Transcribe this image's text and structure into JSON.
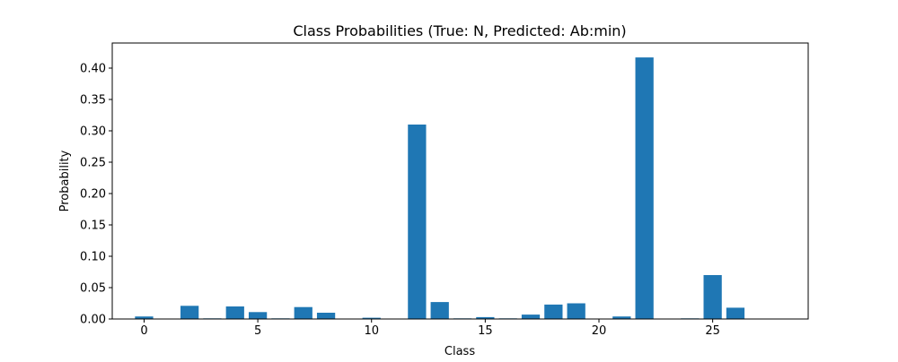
{
  "chart_data": {
    "type": "bar",
    "title": "Class Probabilities (True: N, Predicted: Ab:min)",
    "xlabel": "Class",
    "ylabel": "Probability",
    "xlim": [
      -1.4,
      29.2
    ],
    "ylim": [
      0,
      0.44
    ],
    "xticks": [
      0,
      5,
      10,
      15,
      20,
      25
    ],
    "yticks": [
      0.0,
      0.05,
      0.1,
      0.15,
      0.2,
      0.25,
      0.3,
      0.35,
      0.4
    ],
    "bar_color": "#1f77b4",
    "grid": false,
    "categories": [
      0,
      1,
      2,
      3,
      4,
      5,
      6,
      7,
      8,
      9,
      10,
      11,
      12,
      13,
      14,
      15,
      16,
      17,
      18,
      19,
      20,
      21,
      22,
      23,
      24,
      25,
      26,
      27
    ],
    "values": [
      0.004,
      0.0,
      0.021,
      0.001,
      0.02,
      0.011,
      0.001,
      0.019,
      0.01,
      0.0,
      0.002,
      0.0,
      0.31,
      0.027,
      0.001,
      0.003,
      0.001,
      0.007,
      0.023,
      0.025,
      0.0,
      0.004,
      0.417,
      0.0,
      0.001,
      0.07,
      0.018,
      0.0
    ]
  }
}
